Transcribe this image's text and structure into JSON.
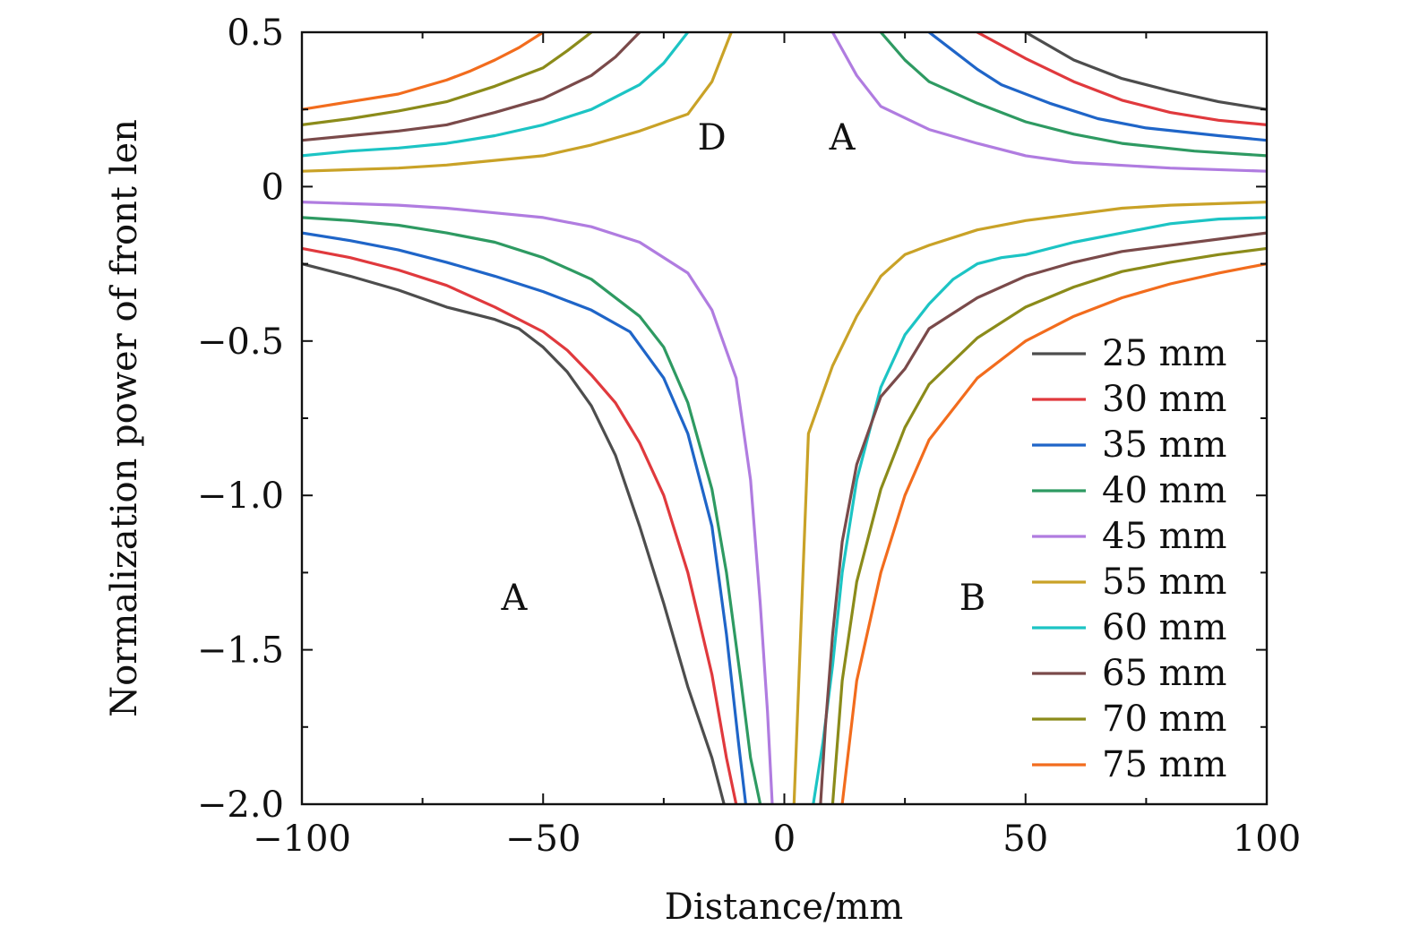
{
  "chart_data": {
    "type": "line",
    "title": "",
    "xlabel": "Distance/mm",
    "ylabel": "Normalization power of front len",
    "xlim": [
      -100,
      100
    ],
    "ylim": [
      -2.0,
      0.5
    ],
    "grid": false,
    "legend_position": "bottom-right",
    "x_ticks": [
      {
        "value": -100,
        "label": "−100"
      },
      {
        "value": -50,
        "label": "−50"
      },
      {
        "value": 0,
        "label": "0"
      },
      {
        "value": 50,
        "label": "50"
      },
      {
        "value": 100,
        "label": "100"
      }
    ],
    "y_ticks": [
      {
        "value": 0.5,
        "label": "0.5"
      },
      {
        "value": 0,
        "label": "0"
      },
      {
        "value": -0.5,
        "label": "−0.5"
      },
      {
        "value": -1.0,
        "label": "−1.0"
      },
      {
        "value": -1.5,
        "label": "−1.5"
      },
      {
        "value": -2.0,
        "label": "−2.0"
      }
    ],
    "x_minor_ticks": [
      -75,
      -25,
      25,
      75
    ],
    "y_minor_ticks": [
      0.25,
      -0.25,
      -0.75,
      -1.25,
      -1.75
    ],
    "annotations": [
      {
        "text": "D",
        "x": -15,
        "y": 0.16
      },
      {
        "text": "A",
        "x": 12,
        "y": 0.16
      },
      {
        "text": "A",
        "x": -56,
        "y": -1.33
      },
      {
        "text": "B",
        "x": 39,
        "y": -1.33
      }
    ],
    "series": [
      {
        "name": "25 mm",
        "color": "#4d4d4d",
        "segments": [
          [
            [
              50,
              0.5
            ],
            [
              60,
              0.41
            ],
            [
              70,
              0.35
            ],
            [
              80,
              0.31
            ],
            [
              90,
              0.275
            ],
            [
              100,
              0.25
            ]
          ],
          [
            [
              -100,
              -0.25
            ],
            [
              -90,
              -0.29
            ],
            [
              -80,
              -0.335
            ],
            [
              -70,
              -0.39
            ],
            [
              -60,
              -0.43
            ],
            [
              -55,
              -0.46
            ],
            [
              -50,
              -0.52
            ],
            [
              -45,
              -0.6
            ],
            [
              -40,
              -0.71
            ],
            [
              -35,
              -0.87
            ],
            [
              -30,
              -1.1
            ],
            [
              -25,
              -1.35
            ],
            [
              -20,
              -1.62
            ],
            [
              -15,
              -1.85
            ],
            [
              -12.5,
              -2.0
            ]
          ]
        ]
      },
      {
        "name": "30 mm",
        "color": "#e0393d",
        "segments": [
          [
            [
              40,
              0.5
            ],
            [
              50,
              0.415
            ],
            [
              60,
              0.34
            ],
            [
              70,
              0.28
            ],
            [
              80,
              0.24
            ],
            [
              90,
              0.215
            ],
            [
              100,
              0.2
            ]
          ],
          [
            [
              -100,
              -0.2
            ],
            [
              -90,
              -0.23
            ],
            [
              -80,
              -0.27
            ],
            [
              -70,
              -0.32
            ],
            [
              -60,
              -0.39
            ],
            [
              -50,
              -0.47
            ],
            [
              -45,
              -0.53
            ],
            [
              -40,
              -0.61
            ],
            [
              -35,
              -0.7
            ],
            [
              -30,
              -0.83
            ],
            [
              -25,
              -1.0
            ],
            [
              -20,
              -1.25
            ],
            [
              -15,
              -1.58
            ],
            [
              -12,
              -1.85
            ],
            [
              -10,
              -2.0
            ]
          ]
        ]
      },
      {
        "name": "35 mm",
        "color": "#1f65c8",
        "segments": [
          [
            [
              30,
              0.5
            ],
            [
              35,
              0.44
            ],
            [
              40,
              0.38
            ],
            [
              45,
              0.33
            ],
            [
              55,
              0.27
            ],
            [
              65,
              0.22
            ],
            [
              75,
              0.19
            ],
            [
              90,
              0.165
            ],
            [
              100,
              0.15
            ]
          ],
          [
            [
              -100,
              -0.15
            ],
            [
              -90,
              -0.175
            ],
            [
              -80,
              -0.205
            ],
            [
              -70,
              -0.245
            ],
            [
              -60,
              -0.29
            ],
            [
              -50,
              -0.34
            ],
            [
              -40,
              -0.4
            ],
            [
              -32,
              -0.47
            ],
            [
              -25,
              -0.62
            ],
            [
              -20,
              -0.8
            ],
            [
              -15,
              -1.1
            ],
            [
              -12,
              -1.45
            ],
            [
              -9.5,
              -1.8
            ],
            [
              -8,
              -2.0
            ]
          ]
        ]
      },
      {
        "name": "40 mm",
        "color": "#2e9a62",
        "segments": [
          [
            [
              20,
              0.5
            ],
            [
              25,
              0.41
            ],
            [
              30,
              0.34
            ],
            [
              40,
              0.27
            ],
            [
              50,
              0.21
            ],
            [
              60,
              0.17
            ],
            [
              70,
              0.14
            ],
            [
              85,
              0.115
            ],
            [
              100,
              0.1
            ]
          ],
          [
            [
              -100,
              -0.1
            ],
            [
              -90,
              -0.11
            ],
            [
              -80,
              -0.125
            ],
            [
              -70,
              -0.15
            ],
            [
              -60,
              -0.18
            ],
            [
              -50,
              -0.23
            ],
            [
              -40,
              -0.3
            ],
            [
              -30,
              -0.42
            ],
            [
              -25,
              -0.52
            ],
            [
              -20,
              -0.7
            ],
            [
              -15,
              -0.98
            ],
            [
              -12,
              -1.25
            ],
            [
              -9,
              -1.6
            ],
            [
              -7,
              -1.85
            ],
            [
              -5,
              -2.0
            ]
          ]
        ]
      },
      {
        "name": "45 mm",
        "color": "#b07ce0",
        "segments": [
          [
            [
              10,
              0.5
            ],
            [
              15,
              0.36
            ],
            [
              20,
              0.26
            ],
            [
              30,
              0.185
            ],
            [
              40,
              0.14
            ],
            [
              50,
              0.1
            ],
            [
              60,
              0.078
            ],
            [
              80,
              0.06
            ],
            [
              100,
              0.05
            ]
          ],
          [
            [
              -100,
              -0.05
            ],
            [
              -80,
              -0.06
            ],
            [
              -70,
              -0.07
            ],
            [
              -60,
              -0.085
            ],
            [
              -50,
              -0.1
            ],
            [
              -40,
              -0.13
            ],
            [
              -30,
              -0.18
            ],
            [
              -20,
              -0.28
            ],
            [
              -15,
              -0.4
            ],
            [
              -10,
              -0.62
            ],
            [
              -7,
              -0.95
            ],
            [
              -5,
              -1.35
            ],
            [
              -3.5,
              -1.7
            ],
            [
              -2.5,
              -2.0
            ]
          ]
        ]
      },
      {
        "name": "55 mm",
        "color": "#c9a227",
        "segments": [
          [
            [
              -100,
              0.05
            ],
            [
              -80,
              0.06
            ],
            [
              -70,
              0.07
            ],
            [
              -60,
              0.085
            ],
            [
              -50,
              0.1
            ],
            [
              -40,
              0.135
            ],
            [
              -30,
              0.18
            ],
            [
              -20,
              0.235
            ],
            [
              -15,
              0.34
            ],
            [
              -11,
              0.5
            ]
          ],
          [
            [
              100,
              -0.05
            ],
            [
              80,
              -0.06
            ],
            [
              70,
              -0.07
            ],
            [
              60,
              -0.09
            ],
            [
              50,
              -0.11
            ],
            [
              40,
              -0.14
            ],
            [
              30,
              -0.19
            ],
            [
              25,
              -0.22
            ],
            [
              20,
              -0.29
            ],
            [
              15,
              -0.42
            ],
            [
              10,
              -0.58
            ],
            [
              5,
              -0.8
            ],
            [
              4,
              -1.2
            ],
            [
              3,
              -1.6
            ],
            [
              2,
              -2.0
            ]
          ]
        ]
      },
      {
        "name": "60 mm",
        "color": "#1cc4c4",
        "segments": [
          [
            [
              -100,
              0.1
            ],
            [
              -90,
              0.115
            ],
            [
              -80,
              0.125
            ],
            [
              -70,
              0.14
            ],
            [
              -60,
              0.165
            ],
            [
              -50,
              0.2
            ],
            [
              -40,
              0.25
            ],
            [
              -30,
              0.33
            ],
            [
              -25,
              0.4
            ],
            [
              -20,
              0.5
            ]
          ],
          [
            [
              100,
              -0.1
            ],
            [
              90,
              -0.105
            ],
            [
              80,
              -0.12
            ],
            [
              70,
              -0.15
            ],
            [
              60,
              -0.18
            ],
            [
              50,
              -0.22
            ],
            [
              45,
              -0.23
            ],
            [
              40,
              -0.25
            ],
            [
              35,
              -0.3
            ],
            [
              30,
              -0.38
            ],
            [
              25,
              -0.48
            ],
            [
              20,
              -0.65
            ],
            [
              15,
              -0.95
            ],
            [
              12,
              -1.25
            ],
            [
              10,
              -1.55
            ],
            [
              8,
              -1.8
            ],
            [
              6,
              -2.0
            ]
          ]
        ]
      },
      {
        "name": "65 mm",
        "color": "#7a4a4a",
        "segments": [
          [
            [
              -100,
              0.15
            ],
            [
              -90,
              0.165
            ],
            [
              -80,
              0.18
            ],
            [
              -70,
              0.2
            ],
            [
              -60,
              0.24
            ],
            [
              -50,
              0.285
            ],
            [
              -40,
              0.36
            ],
            [
              -35,
              0.42
            ],
            [
              -30,
              0.5
            ]
          ],
          [
            [
              100,
              -0.15
            ],
            [
              90,
              -0.17
            ],
            [
              80,
              -0.19
            ],
            [
              70,
              -0.21
            ],
            [
              60,
              -0.245
            ],
            [
              50,
              -0.29
            ],
            [
              40,
              -0.36
            ],
            [
              30,
              -0.46
            ],
            [
              25,
              -0.59
            ],
            [
              20,
              -0.68
            ],
            [
              15,
              -0.9
            ],
            [
              12,
              -1.15
            ],
            [
              10,
              -1.45
            ],
            [
              8.5,
              -1.75
            ],
            [
              7.5,
              -2.0
            ]
          ]
        ]
      },
      {
        "name": "70 mm",
        "color": "#8b8b1a",
        "segments": [
          [
            [
              -100,
              0.2
            ],
            [
              -90,
              0.22
            ],
            [
              -80,
              0.245
            ],
            [
              -70,
              0.275
            ],
            [
              -60,
              0.325
            ],
            [
              -50,
              0.385
            ],
            [
              -45,
              0.44
            ],
            [
              -40,
              0.5
            ]
          ],
          [
            [
              100,
              -0.2
            ],
            [
              90,
              -0.22
            ],
            [
              80,
              -0.245
            ],
            [
              70,
              -0.275
            ],
            [
              60,
              -0.325
            ],
            [
              50,
              -0.39
            ],
            [
              40,
              -0.49
            ],
            [
              30,
              -0.64
            ],
            [
              25,
              -0.78
            ],
            [
              20,
              -0.98
            ],
            [
              15,
              -1.28
            ],
            [
              12,
              -1.6
            ],
            [
              10,
              -2.0
            ]
          ]
        ]
      },
      {
        "name": "75 mm",
        "color": "#f26c1d",
        "segments": [
          [
            [
              -100,
              0.25
            ],
            [
              -90,
              0.275
            ],
            [
              -80,
              0.3
            ],
            [
              -70,
              0.345
            ],
            [
              -65,
              0.375
            ],
            [
              -60,
              0.41
            ],
            [
              -55,
              0.45
            ],
            [
              -50,
              0.5
            ]
          ],
          [
            [
              100,
              -0.25
            ],
            [
              90,
              -0.28
            ],
            [
              80,
              -0.315
            ],
            [
              70,
              -0.36
            ],
            [
              60,
              -0.42
            ],
            [
              50,
              -0.5
            ],
            [
              40,
              -0.62
            ],
            [
              30,
              -0.82
            ],
            [
              25,
              -1.0
            ],
            [
              20,
              -1.25
            ],
            [
              15,
              -1.6
            ],
            [
              12,
              -2.0
            ]
          ]
        ]
      }
    ]
  }
}
